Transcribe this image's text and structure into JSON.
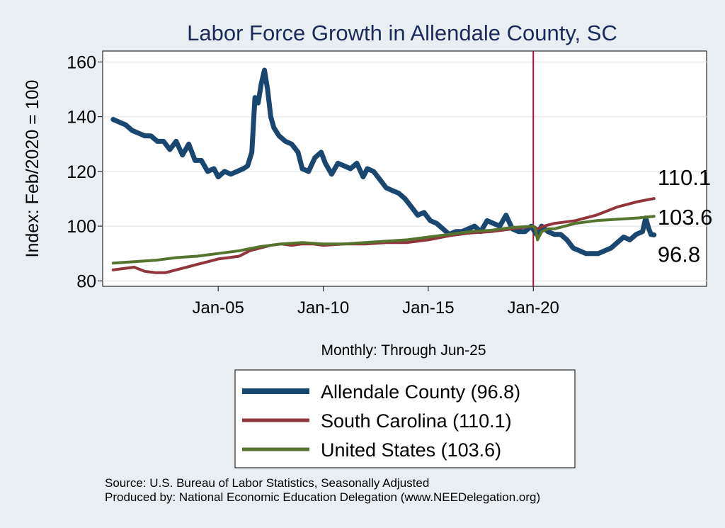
{
  "chart_data": {
    "type": "line",
    "title": "Labor Force Growth in Allendale  County, SC",
    "ylabel": "Index: Feb/2020 = 100",
    "xlabel": "Monthly: Through Jun-25",
    "ylim": [
      78,
      164
    ],
    "xlim": [
      1999.5,
      2028.25
    ],
    "yticks": [
      80,
      100,
      120,
      140,
      160
    ],
    "xticks": [
      {
        "label": "Jan-05",
        "value": 2005.0
      },
      {
        "label": "Jan-10",
        "value": 2010.0
      },
      {
        "label": "Jan-15",
        "value": 2015.0
      },
      {
        "label": "Jan-20",
        "value": 2020.0
      }
    ],
    "reference_line": {
      "x": 2020.0,
      "color": "#b0123e"
    },
    "series": [
      {
        "name": "Allendale  County",
        "legend": "Allendale  County (96.8)",
        "end_label": "96.8",
        "color": "#1a476f",
        "points": [
          [
            2000.0,
            139
          ],
          [
            2000.3,
            138
          ],
          [
            2000.6,
            137
          ],
          [
            2000.9,
            135
          ],
          [
            2001.2,
            134
          ],
          [
            2001.5,
            133
          ],
          [
            2001.8,
            133
          ],
          [
            2002.1,
            131
          ],
          [
            2002.4,
            131
          ],
          [
            2002.7,
            128
          ],
          [
            2003.0,
            131
          ],
          [
            2003.3,
            126
          ],
          [
            2003.6,
            130
          ],
          [
            2003.9,
            124
          ],
          [
            2004.2,
            124
          ],
          [
            2004.5,
            120
          ],
          [
            2004.8,
            121
          ],
          [
            2005.0,
            118
          ],
          [
            2005.3,
            120
          ],
          [
            2005.6,
            119
          ],
          [
            2005.9,
            120
          ],
          [
            2006.2,
            121
          ],
          [
            2006.4,
            122
          ],
          [
            2006.6,
            127
          ],
          [
            2006.75,
            147
          ],
          [
            2006.9,
            145
          ],
          [
            2007.05,
            152
          ],
          [
            2007.2,
            157
          ],
          [
            2007.35,
            150
          ],
          [
            2007.5,
            140
          ],
          [
            2007.65,
            136
          ],
          [
            2007.9,
            133
          ],
          [
            2008.2,
            131
          ],
          [
            2008.5,
            130
          ],
          [
            2008.8,
            127
          ],
          [
            2009.0,
            121
          ],
          [
            2009.3,
            120
          ],
          [
            2009.6,
            125
          ],
          [
            2009.9,
            127
          ],
          [
            2010.1,
            123
          ],
          [
            2010.4,
            119
          ],
          [
            2010.7,
            123
          ],
          [
            2011.0,
            122
          ],
          [
            2011.3,
            121
          ],
          [
            2011.6,
            123
          ],
          [
            2011.9,
            118
          ],
          [
            2012.1,
            121
          ],
          [
            2012.4,
            120
          ],
          [
            2012.7,
            117
          ],
          [
            2013.0,
            114
          ],
          [
            2013.3,
            113
          ],
          [
            2013.6,
            112
          ],
          [
            2013.9,
            110
          ],
          [
            2014.2,
            107
          ],
          [
            2014.5,
            104
          ],
          [
            2014.8,
            105
          ],
          [
            2015.1,
            102
          ],
          [
            2015.4,
            101
          ],
          [
            2015.7,
            99
          ],
          [
            2016.0,
            97
          ],
          [
            2016.3,
            98
          ],
          [
            2016.6,
            98
          ],
          [
            2016.9,
            99
          ],
          [
            2017.2,
            100
          ],
          [
            2017.5,
            98
          ],
          [
            2017.8,
            102
          ],
          [
            2018.1,
            101
          ],
          [
            2018.4,
            100
          ],
          [
            2018.7,
            104
          ],
          [
            2019.0,
            99
          ],
          [
            2019.3,
            98
          ],
          [
            2019.6,
            98
          ],
          [
            2019.9,
            100
          ],
          [
            2020.15,
            97
          ],
          [
            2020.4,
            100
          ],
          [
            2020.7,
            98
          ],
          [
            2021.0,
            97
          ],
          [
            2021.3,
            97
          ],
          [
            2021.6,
            95
          ],
          [
            2021.9,
            92
          ],
          [
            2022.2,
            91
          ],
          [
            2022.5,
            90
          ],
          [
            2022.8,
            90
          ],
          [
            2023.1,
            90
          ],
          [
            2023.4,
            91
          ],
          [
            2023.7,
            92
          ],
          [
            2024.0,
            94
          ],
          [
            2024.3,
            96
          ],
          [
            2024.6,
            95
          ],
          [
            2024.9,
            97
          ],
          [
            2025.2,
            98
          ],
          [
            2025.35,
            103
          ],
          [
            2025.5,
            99
          ],
          [
            2025.6,
            97
          ],
          [
            2025.75,
            96.8
          ]
        ]
      },
      {
        "name": "South Carolina",
        "legend": "South Carolina (110.1)",
        "end_label": "110.1",
        "color": "#90353b",
        "points": [
          [
            2000.0,
            84
          ],
          [
            2000.5,
            84.5
          ],
          [
            2001.0,
            85
          ],
          [
            2001.5,
            83.5
          ],
          [
            2002.0,
            83
          ],
          [
            2002.5,
            83
          ],
          [
            2003.0,
            84
          ],
          [
            2003.5,
            85
          ],
          [
            2004.0,
            86
          ],
          [
            2004.5,
            87
          ],
          [
            2005.0,
            88
          ],
          [
            2005.5,
            88.5
          ],
          [
            2006.0,
            89
          ],
          [
            2006.5,
            91
          ],
          [
            2007.0,
            92
          ],
          [
            2007.5,
            93
          ],
          [
            2008.0,
            93.5
          ],
          [
            2008.5,
            93
          ],
          [
            2009.0,
            93.5
          ],
          [
            2009.5,
            93.5
          ],
          [
            2010.0,
            93
          ],
          [
            2011.0,
            93.5
          ],
          [
            2012.0,
            93.5
          ],
          [
            2013.0,
            94
          ],
          [
            2014.0,
            94
          ],
          [
            2015.0,
            95
          ],
          [
            2016.0,
            96.5
          ],
          [
            2017.0,
            97.5
          ],
          [
            2018.0,
            98
          ],
          [
            2019.0,
            99
          ],
          [
            2020.0,
            100
          ],
          [
            2020.2,
            99
          ],
          [
            2020.5,
            100
          ],
          [
            2021.0,
            101
          ],
          [
            2021.5,
            101.5
          ],
          [
            2022.0,
            102
          ],
          [
            2023.0,
            104
          ],
          [
            2024.0,
            107
          ],
          [
            2025.0,
            109
          ],
          [
            2025.75,
            110.1
          ]
        ]
      },
      {
        "name": "United States",
        "legend": "United States (103.6)",
        "end_label": "103.6",
        "color": "#55752f",
        "points": [
          [
            2000.0,
            86.5
          ],
          [
            2001.0,
            87
          ],
          [
            2002.0,
            87.5
          ],
          [
            2003.0,
            88.5
          ],
          [
            2004.0,
            89
          ],
          [
            2005.0,
            90
          ],
          [
            2006.0,
            91
          ],
          [
            2007.0,
            92.5
          ],
          [
            2008.0,
            93.5
          ],
          [
            2009.0,
            94
          ],
          [
            2010.0,
            93.5
          ],
          [
            2011.0,
            93.5
          ],
          [
            2012.0,
            94
          ],
          [
            2013.0,
            94.5
          ],
          [
            2014.0,
            95
          ],
          [
            2015.0,
            96
          ],
          [
            2016.0,
            97
          ],
          [
            2017.0,
            98
          ],
          [
            2018.0,
            98.5
          ],
          [
            2019.0,
            99.5
          ],
          [
            2020.0,
            100
          ],
          [
            2020.1,
            99
          ],
          [
            2020.2,
            95
          ],
          [
            2020.4,
            98
          ],
          [
            2020.7,
            99
          ],
          [
            2021.0,
            99
          ],
          [
            2021.5,
            100
          ],
          [
            2022.0,
            101
          ],
          [
            2023.0,
            102
          ],
          [
            2024.0,
            102.5
          ],
          [
            2025.0,
            103
          ],
          [
            2025.75,
            103.6
          ]
        ]
      }
    ],
    "source_lines": [
      "Source: U.S. Bureau of Labor Statistics, Seasonally Adjusted",
      "Produced by: National Economic Education Delegation (www.NEEDelegation.org)"
    ]
  }
}
